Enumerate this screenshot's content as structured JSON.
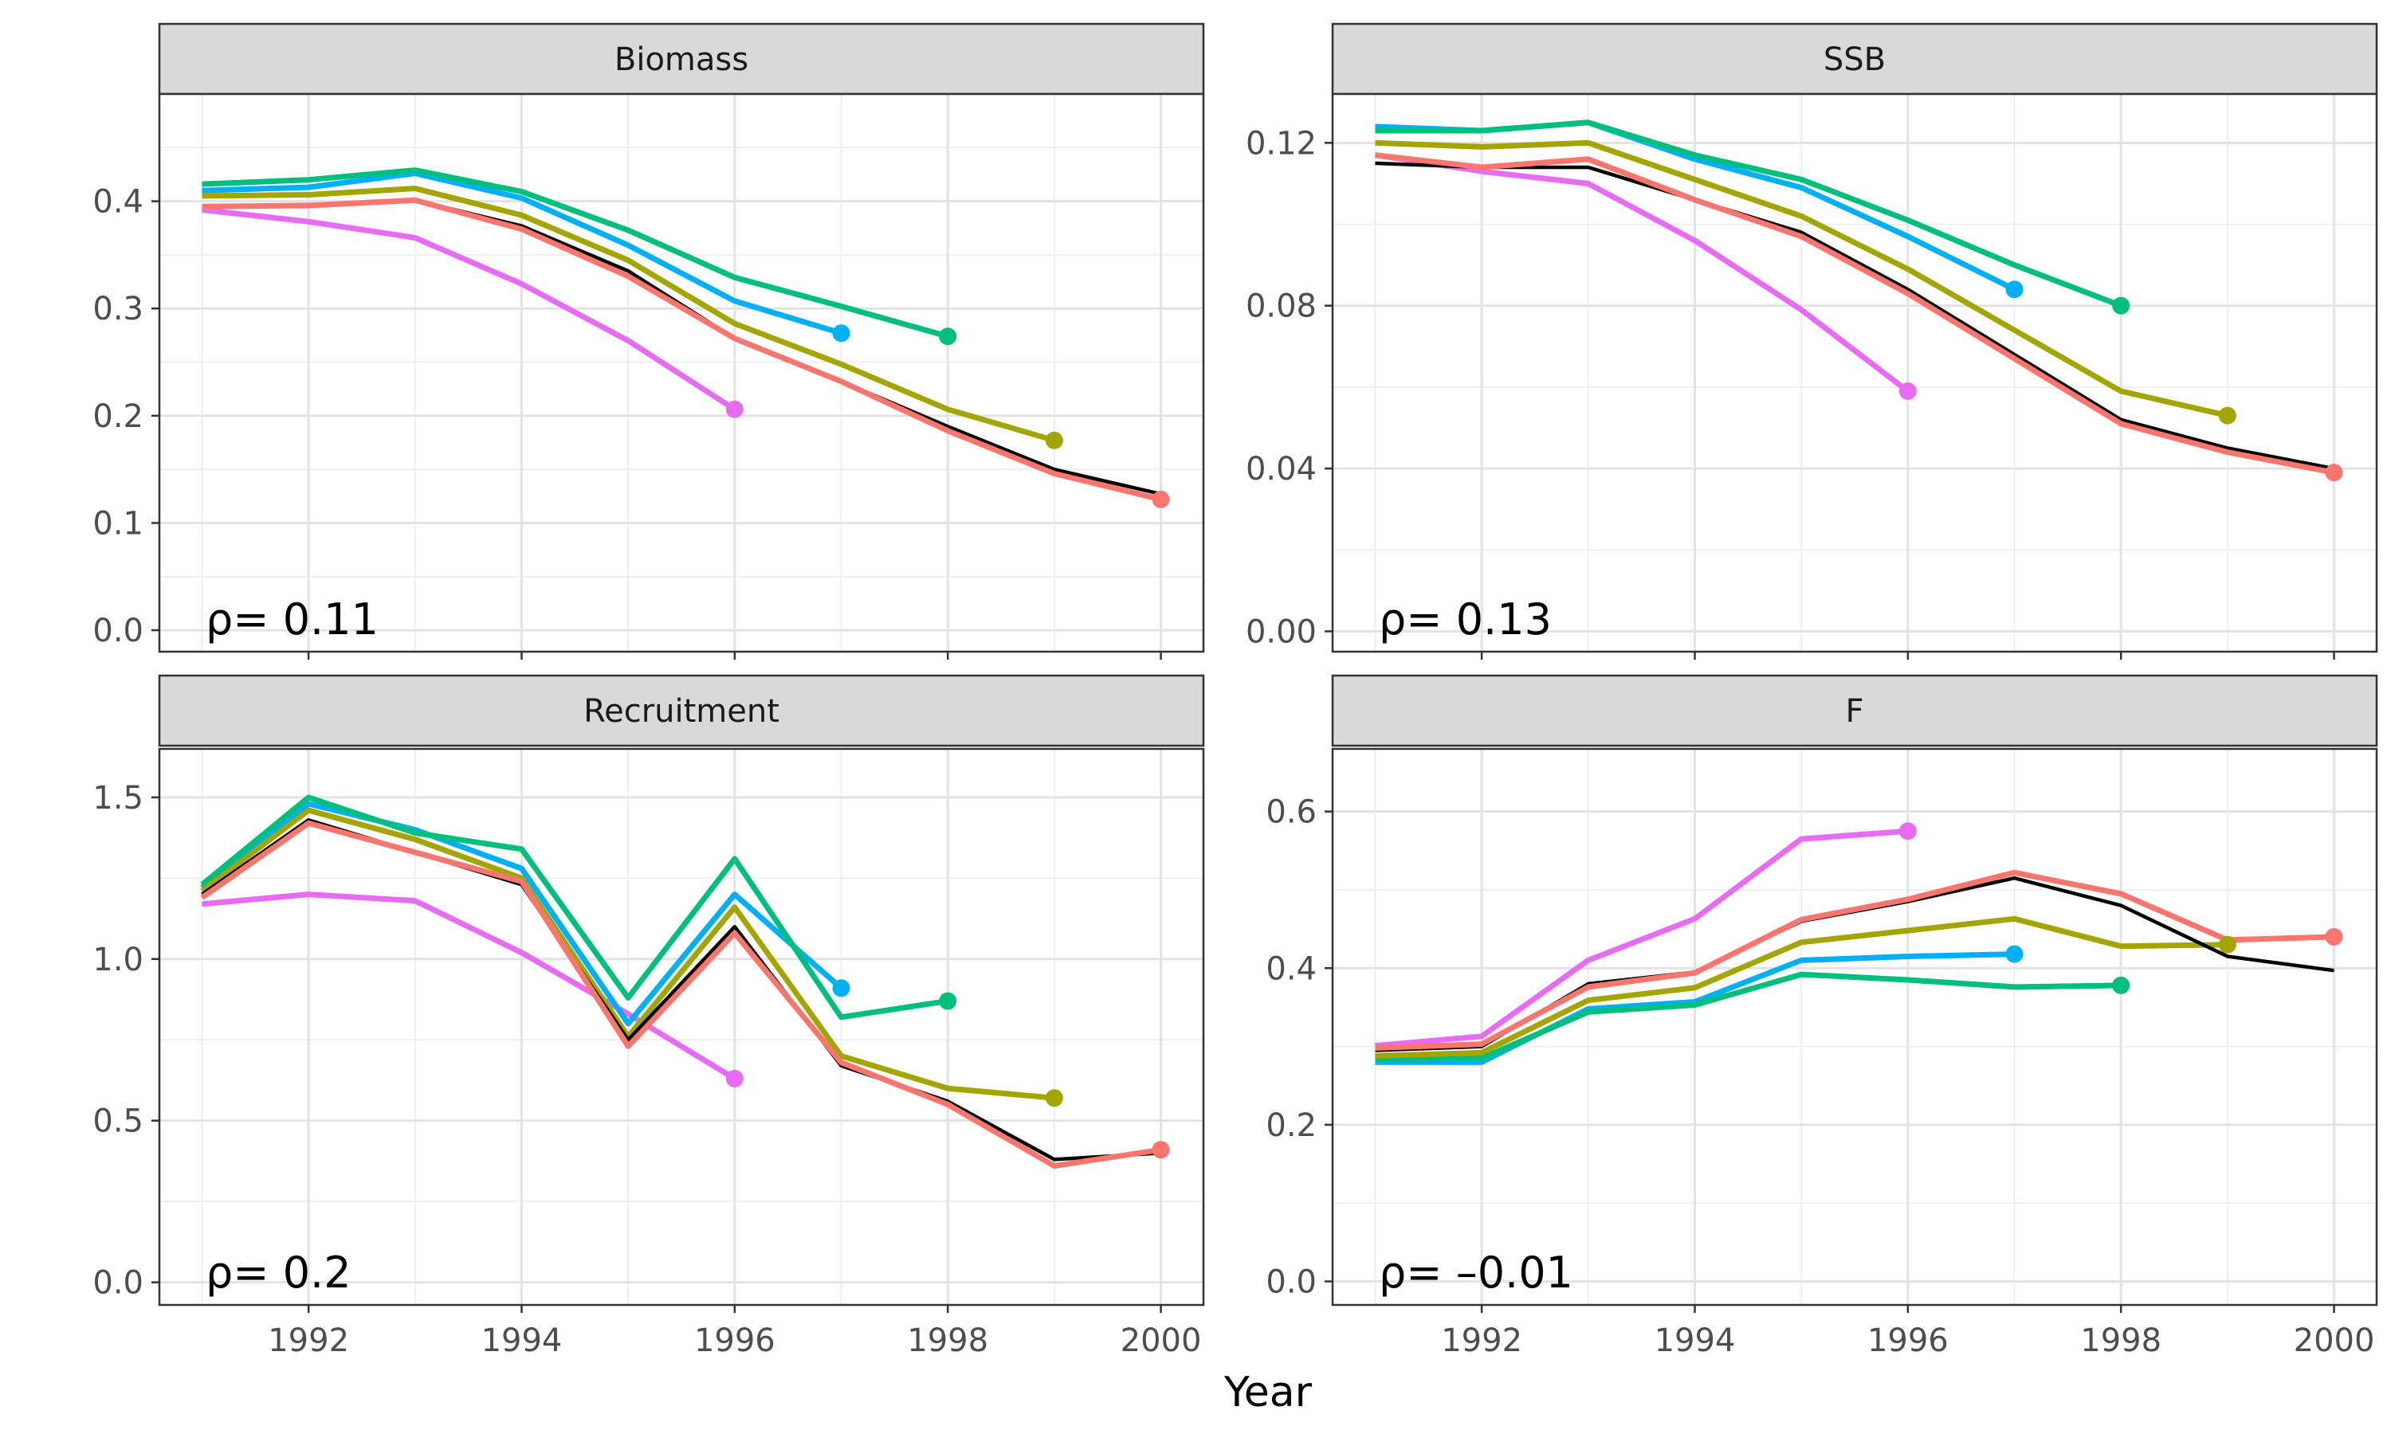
{
  "chart_data": {
    "type": "line",
    "xlabel": "Year",
    "x_ticks": [
      1992,
      1994,
      1996,
      1998,
      2000
    ],
    "xlim": [
      1990.6,
      2000.4
    ],
    "grid": true,
    "legend": "none",
    "series_colors": {
      "ref": "#000000",
      "peel1": "#F8766D",
      "peel2": "#A3A500",
      "peel3": "#00BF7D",
      "peel4": "#00B0F6",
      "peel5": "#E76BF3"
    },
    "panels": [
      {
        "title": "Biomass",
        "rho_text": "0.11",
        "ylim": [
          -0.02,
          0.5
        ],
        "y_ticks": [
          0.0,
          0.1,
          0.2,
          0.3,
          0.4
        ],
        "y_tick_labels": [
          "0.0",
          "0.1",
          "0.2",
          "0.3",
          "0.4"
        ],
        "series": [
          {
            "key": "ref",
            "x": [
              1991,
              1992,
              1993,
              1994,
              1995,
              1996,
              1997,
              1998,
              1999,
              2000
            ],
            "y": [
              0.395,
              0.396,
              0.401,
              0.377,
              0.335,
              0.272,
              0.232,
              0.19,
              0.15,
              0.127
            ]
          },
          {
            "key": "peel1",
            "x": [
              1991,
              1992,
              1993,
              1994,
              1995,
              1996,
              1997,
              1998,
              1999,
              2000
            ],
            "y": [
              0.395,
              0.396,
              0.401,
              0.374,
              0.33,
              0.272,
              0.232,
              0.186,
              0.146,
              0.122
            ]
          },
          {
            "key": "peel2",
            "x": [
              1991,
              1992,
              1993,
              1994,
              1995,
              1996,
              1997,
              1998,
              1999
            ],
            "y": [
              0.405,
              0.406,
              0.412,
              0.387,
              0.345,
              0.286,
              0.248,
              0.206,
              0.177
            ]
          },
          {
            "key": "peel3",
            "x": [
              1991,
              1992,
              1993,
              1994,
              1995,
              1996,
              1997,
              1998
            ],
            "y": [
              0.416,
              0.42,
              0.429,
              0.409,
              0.373,
              0.329,
              0.302,
              0.274
            ]
          },
          {
            "key": "peel4",
            "x": [
              1991,
              1992,
              1993,
              1994,
              1995,
              1996,
              1997
            ],
            "y": [
              0.41,
              0.413,
              0.426,
              0.403,
              0.359,
              0.307,
              0.277
            ]
          },
          {
            "key": "peel5",
            "x": [
              1991,
              1992,
              1993,
              1994,
              1995,
              1996
            ],
            "y": [
              0.392,
              0.381,
              0.366,
              0.323,
              0.27,
              0.206
            ]
          }
        ]
      },
      {
        "title": "SSB",
        "rho_text": "0.13",
        "ylim": [
          -0.005,
          0.132
        ],
        "y_ticks": [
          0.0,
          0.04,
          0.08,
          0.12
        ],
        "y_tick_labels": [
          "0.00",
          "0.04",
          "0.08",
          "0.12"
        ],
        "series": [
          {
            "key": "ref",
            "x": [
              1991,
              1992,
              1993,
              1994,
              1995,
              1996,
              1997,
              1998,
              1999,
              2000
            ],
            "y": [
              0.115,
              0.114,
              0.114,
              0.106,
              0.098,
              0.084,
              0.068,
              0.052,
              0.045,
              0.04
            ]
          },
          {
            "key": "peel1",
            "x": [
              1991,
              1992,
              1993,
              1994,
              1995,
              1996,
              1997,
              1998,
              1999,
              2000
            ],
            "y": [
              0.117,
              0.114,
              0.116,
              0.106,
              0.097,
              0.083,
              0.067,
              0.051,
              0.044,
              0.039
            ]
          },
          {
            "key": "peel2",
            "x": [
              1991,
              1992,
              1993,
              1994,
              1995,
              1996,
              1997,
              1998,
              1999
            ],
            "y": [
              0.12,
              0.119,
              0.12,
              0.111,
              0.102,
              0.089,
              0.074,
              0.059,
              0.053
            ]
          },
          {
            "key": "peel3",
            "x": [
              1991,
              1992,
              1993,
              1994,
              1995,
              1996,
              1997,
              1998
            ],
            "y": [
              0.123,
              0.123,
              0.125,
              0.117,
              0.111,
              0.101,
              0.09,
              0.08
            ]
          },
          {
            "key": "peel4",
            "x": [
              1991,
              1992,
              1993,
              1994,
              1995,
              1996,
              1997
            ],
            "y": [
              0.124,
              0.123,
              0.125,
              0.116,
              0.109,
              0.097,
              0.084
            ]
          },
          {
            "key": "peel5",
            "x": [
              1991,
              1992,
              1993,
              1994,
              1995,
              1996
            ],
            "y": [
              0.117,
              0.113,
              0.11,
              0.096,
              0.079,
              0.059
            ]
          }
        ]
      },
      {
        "title": "Recruitment",
        "rho_text": "0.2",
        "ylim": [
          -0.07,
          1.65
        ],
        "y_ticks": [
          0.0,
          0.5,
          1.0,
          1.5
        ],
        "y_tick_labels": [
          "0.0",
          "0.5",
          "1.0",
          "1.5"
        ],
        "series": [
          {
            "key": "ref",
            "x": [
              1991,
              1992,
              1993,
              1994,
              1995,
              1996,
              1997,
              1998,
              1999,
              2000
            ],
            "y": [
              1.2,
              1.43,
              1.33,
              1.23,
              0.75,
              1.1,
              0.67,
              0.56,
              0.38,
              0.4
            ]
          },
          {
            "key": "peel1",
            "x": [
              1991,
              1992,
              1993,
              1994,
              1995,
              1996,
              1997,
              1998,
              1999,
              2000
            ],
            "y": [
              1.19,
              1.42,
              1.33,
              1.24,
              0.73,
              1.08,
              0.68,
              0.55,
              0.36,
              0.41
            ]
          },
          {
            "key": "peel2",
            "x": [
              1991,
              1992,
              1993,
              1994,
              1995,
              1996,
              1997,
              1998,
              1999
            ],
            "y": [
              1.21,
              1.46,
              1.37,
              1.25,
              0.76,
              1.16,
              0.7,
              0.6,
              0.57
            ]
          },
          {
            "key": "peel3",
            "x": [
              1991,
              1992,
              1993,
              1994,
              1995,
              1996,
              1997,
              1998
            ],
            "y": [
              1.23,
              1.5,
              1.39,
              1.34,
              0.88,
              1.31,
              0.82,
              0.87
            ]
          },
          {
            "key": "peel4",
            "x": [
              1991,
              1992,
              1993,
              1994,
              1995,
              1996,
              1997
            ],
            "y": [
              1.22,
              1.48,
              1.4,
              1.28,
              0.8,
              1.2,
              0.91
            ]
          },
          {
            "key": "peel5",
            "x": [
              1991,
              1992,
              1993,
              1994,
              1995,
              1996
            ],
            "y": [
              1.17,
              1.2,
              1.18,
              1.02,
              0.83,
              0.63
            ]
          }
        ]
      },
      {
        "title": "F",
        "rho_text": "–0.01",
        "ylim": [
          -0.03,
          0.68
        ],
        "y_ticks": [
          0.0,
          0.2,
          0.4,
          0.6
        ],
        "y_tick_labels": [
          "0.0",
          "0.2",
          "0.4",
          "0.6"
        ],
        "series": [
          {
            "key": "ref",
            "x": [
              1991,
              1992,
              1993,
              1994,
              1995,
              1996,
              1997,
              1998,
              1999,
              2000
            ],
            "y": [
              0.295,
              0.3,
              0.38,
              0.395,
              0.46,
              0.485,
              0.515,
              0.48,
              0.415,
              0.397
            ]
          },
          {
            "key": "peel1",
            "x": [
              1991,
              1992,
              1993,
              1994,
              1995,
              1996,
              1997,
              1998,
              1999,
              2000
            ],
            "y": [
              0.298,
              0.303,
              0.376,
              0.394,
              0.462,
              0.488,
              0.522,
              0.495,
              0.436,
              0.44
            ]
          },
          {
            "key": "peel2",
            "x": [
              1991,
              1992,
              1993,
              1994,
              1995,
              1996,
              1997,
              1998,
              1999
            ],
            "y": [
              0.288,
              0.292,
              0.359,
              0.375,
              0.433,
              0.448,
              0.463,
              0.428,
              0.43
            ]
          },
          {
            "key": "peel3",
            "x": [
              1991,
              1992,
              1993,
              1994,
              1995,
              1996,
              1997,
              1998
            ],
            "y": [
              0.284,
              0.285,
              0.344,
              0.353,
              0.392,
              0.385,
              0.376,
              0.378
            ]
          },
          {
            "key": "peel4",
            "x": [
              1991,
              1992,
              1993,
              1994,
              1995,
              1996,
              1997
            ],
            "y": [
              0.28,
              0.28,
              0.348,
              0.357,
              0.41,
              0.415,
              0.418
            ]
          },
          {
            "key": "peel5",
            "x": [
              1991,
              1992,
              1993,
              1994,
              1995,
              1996
            ],
            "y": [
              0.301,
              0.313,
              0.41,
              0.463,
              0.565,
              0.575
            ]
          }
        ]
      }
    ]
  }
}
